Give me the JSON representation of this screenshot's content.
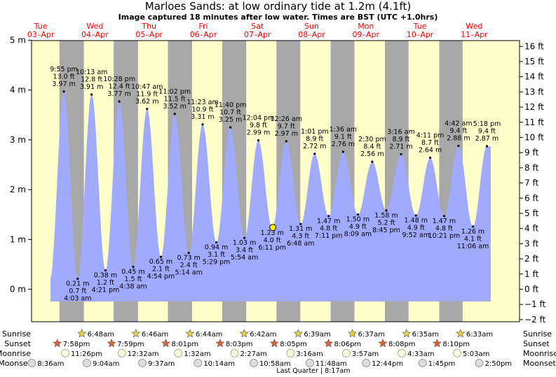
{
  "header": {
    "title": "Marloes Sands: at low  ordinary tide at 1.2m (4.1ft)",
    "subtitle": "Image captured 18 minutes after low water. Times are BST (UTC +1.0hrs)"
  },
  "chart_data": {
    "type": "area",
    "xunit": "hours since Tue 03-Apr 00:00 BST",
    "days": [
      {
        "dow": "Tue",
        "date": "03–Apr"
      },
      {
        "dow": "Wed",
        "date": "04–Apr"
      },
      {
        "dow": "Thu",
        "date": "05–Apr"
      },
      {
        "dow": "Fri",
        "date": "06–Apr"
      },
      {
        "dow": "Sat",
        "date": "07–Apr"
      },
      {
        "dow": "Sun",
        "date": "08–Apr"
      },
      {
        "dow": "Mon",
        "date": "09–Apr"
      },
      {
        "dow": "Tue",
        "date": "10–Apr"
      },
      {
        "dow": "Wed",
        "date": "11–Apr"
      }
    ],
    "ylim_m": [
      -0.65,
      5.0
    ],
    "y_ticks_m": [
      "5 m",
      "4 m",
      "3 m",
      "2 m",
      "1 m",
      "0 m"
    ],
    "y_ticks_ft": [
      "16 ft",
      "15 ft",
      "14 ft",
      "13 ft",
      "12 ft",
      "11 ft",
      "10 ft",
      "9 ft",
      "8 ft",
      "7 ft",
      "6 ft",
      "5 ft",
      "4 ft",
      "3 ft",
      "2 ft",
      "1 ft",
      "0 ft",
      "−1 ft",
      "−2 ft"
    ],
    "tides": [
      {
        "type": "high",
        "day": 0,
        "time": "9:55 pm",
        "ft": "13.0 ft",
        "m": "3.97 m",
        "h": 21.92,
        "v": 3.97
      },
      {
        "type": "low",
        "day": 1,
        "time": "4:03 am",
        "ft": "0.7 ft",
        "m": "0.21 m",
        "h": 28.05,
        "v": 0.21
      },
      {
        "type": "high",
        "day": 1,
        "time": "10:13 am",
        "ft": "12.8 ft",
        "m": "3.91 m",
        "h": 34.22,
        "v": 3.91
      },
      {
        "type": "low",
        "day": 1,
        "time": "4:21 pm",
        "ft": "1.2 ft",
        "m": "0.38 m",
        "h": 40.35,
        "v": 0.38
      },
      {
        "type": "high",
        "day": 1,
        "time": "10:28 pm",
        "ft": "12.4 ft",
        "m": "3.77 m",
        "h": 46.47,
        "v": 3.77
      },
      {
        "type": "low",
        "day": 2,
        "time": "4:38 am",
        "ft": "1.5 ft",
        "m": "0.45 m",
        "h": 52.63,
        "v": 0.45
      },
      {
        "type": "high",
        "day": 2,
        "time": "10:47 am",
        "ft": "11.9 ft",
        "m": "3.62 m",
        "h": 58.78,
        "v": 3.62
      },
      {
        "type": "low",
        "day": 2,
        "time": "4:54 pm",
        "ft": "2.1 ft",
        "m": "0.65 m",
        "h": 64.9,
        "v": 0.65
      },
      {
        "type": "high",
        "day": 2,
        "time": "11:02 pm",
        "ft": "11.5 ft",
        "m": "3.52 m",
        "h": 71.03,
        "v": 3.52
      },
      {
        "type": "low",
        "day": 3,
        "time": "5:14 am",
        "ft": "2.4 ft",
        "m": "0.73 m",
        "h": 77.23,
        "v": 0.73
      },
      {
        "type": "high",
        "day": 3,
        "time": "11:23 am",
        "ft": "10.9 ft",
        "m": "3.31 m",
        "h": 83.38,
        "v": 3.31
      },
      {
        "type": "low",
        "day": 3,
        "time": "5:29 pm",
        "ft": "3.1 ft",
        "m": "0.94 m",
        "h": 89.48,
        "v": 0.94
      },
      {
        "type": "high",
        "day": 3,
        "time": "11:40 pm",
        "ft": "10.7 ft",
        "m": "3.25 m",
        "h": 95.67,
        "v": 3.25
      },
      {
        "type": "low",
        "day": 4,
        "time": "5:54 am",
        "ft": "3.4 ft",
        "m": "1.03 m",
        "h": 101.9,
        "v": 1.03
      },
      {
        "type": "high",
        "day": 4,
        "time": "12:04 pm",
        "ft": "9.8 ft",
        "m": "2.99 m",
        "h": 108.07,
        "v": 2.99
      },
      {
        "type": "low",
        "day": 4,
        "time": "6:11 pm",
        "ft": "4.0 ft",
        "m": "1.23 m",
        "h": 114.18,
        "v": 1.23
      },
      {
        "type": "high",
        "day": 5,
        "time": "12:26 am",
        "ft": "9.7 ft",
        "m": "2.97 m",
        "h": 120.43,
        "v": 2.97
      },
      {
        "type": "low",
        "day": 5,
        "time": "6:48 am",
        "ft": "4.3 ft",
        "m": "1.31 m",
        "h": 126.8,
        "v": 1.31
      },
      {
        "type": "high",
        "day": 5,
        "time": "1:01 pm",
        "ft": "8.9 ft",
        "m": "2.72 m",
        "h": 133.02,
        "v": 2.72
      },
      {
        "type": "low",
        "day": 5,
        "time": "7:11 pm",
        "ft": "4.8 ft",
        "m": "1.47 m",
        "h": 139.18,
        "v": 1.47
      },
      {
        "type": "high",
        "day": 6,
        "time": "1:36 am",
        "ft": "9.1 ft",
        "m": "2.76 m",
        "h": 145.6,
        "v": 2.76
      },
      {
        "type": "low",
        "day": 6,
        "time": "8:09 am",
        "ft": "4.9 ft",
        "m": "1.50 m",
        "h": 152.15,
        "v": 1.5
      },
      {
        "type": "high",
        "day": 6,
        "time": "2:30 pm",
        "ft": "8.4 ft",
        "m": "2.56 m",
        "h": 158.5,
        "v": 2.56
      },
      {
        "type": "low",
        "day": 6,
        "time": "8:45 pm",
        "ft": "5.2 ft",
        "m": "1.58 m",
        "h": 164.75,
        "v": 1.58
      },
      {
        "type": "high",
        "day": 7,
        "time": "3:16 am",
        "ft": "8.9 ft",
        "m": "2.71 m",
        "h": 171.27,
        "v": 2.71
      },
      {
        "type": "low",
        "day": 7,
        "time": "9:52 am",
        "ft": "4.9 ft",
        "m": "1.48 m",
        "h": 177.87,
        "v": 1.48
      },
      {
        "type": "high",
        "day": 7,
        "time": "4:11 pm",
        "ft": "8.7 ft",
        "m": "2.64 m",
        "h": 184.18,
        "v": 2.64
      },
      {
        "type": "low",
        "day": 7,
        "time": "10:21 pm",
        "ft": "4.8 ft",
        "m": "1.47 m",
        "h": 190.35,
        "v": 1.47
      },
      {
        "type": "high",
        "day": 8,
        "time": "4:42 am",
        "ft": "9.4 ft",
        "m": "2.88 m",
        "h": 196.7,
        "v": 2.88
      },
      {
        "type": "low",
        "day": 8,
        "time": "11:06 am",
        "ft": "4.1 ft",
        "m": "1.26 m",
        "h": 203.1,
        "v": 1.26
      },
      {
        "type": "high",
        "day": 8,
        "time": "5:18 pm",
        "ft": "9.4 ft",
        "m": "2.87 m",
        "h": 209.3,
        "v": 2.87
      }
    ],
    "current": {
      "h": 114.48,
      "v": 1.24
    },
    "sunrise": [
      {
        "day": 1,
        "time": "6:48am",
        "h": 30.8
      },
      {
        "day": 2,
        "time": "6:46am",
        "h": 54.77
      },
      {
        "day": 3,
        "time": "6:44am",
        "h": 78.73
      },
      {
        "day": 4,
        "time": "6:42am",
        "h": 102.7
      },
      {
        "day": 5,
        "time": "6:39am",
        "h": 126.65
      },
      {
        "day": 6,
        "time": "6:37am",
        "h": 150.62
      },
      {
        "day": 7,
        "time": "6:35am",
        "h": 174.58
      },
      {
        "day": 8,
        "time": "6:33am",
        "h": 198.55
      }
    ],
    "sunset": [
      {
        "day": 0,
        "time": "7:58pm",
        "h": 19.97
      },
      {
        "day": 1,
        "time": "7:59pm",
        "h": 43.98
      },
      {
        "day": 2,
        "time": "8:01pm",
        "h": 68.02
      },
      {
        "day": 3,
        "time": "8:03pm",
        "h": 92.05
      },
      {
        "day": 4,
        "time": "8:05pm",
        "h": 116.08
      },
      {
        "day": 5,
        "time": "8:06pm",
        "h": 140.1
      },
      {
        "day": 6,
        "time": "8:08pm",
        "h": 164.13
      },
      {
        "day": 7,
        "time": "8:10pm",
        "h": 188.17
      }
    ],
    "moonrise": [
      {
        "day": 0,
        "time": "11:26pm",
        "h": 23.43
      },
      {
        "day": 1,
        "time": "12:32am",
        "h": 48.53
      },
      {
        "day": 2,
        "time": "1:32am",
        "h": 73.53
      },
      {
        "day": 3,
        "time": "2:27am",
        "h": 98.45
      },
      {
        "day": 4,
        "time": "3:16am",
        "h": 123.27
      },
      {
        "day": 5,
        "time": "3:57am",
        "h": 147.95
      },
      {
        "day": 6,
        "time": "4:33am",
        "h": 172.55
      },
      {
        "day": 7,
        "time": "5:03am",
        "h": 197.05
      }
    ],
    "moonset": [
      {
        "day": 0,
        "time": "8:36am",
        "h": 8.6
      },
      {
        "day": 1,
        "time": "9:04am",
        "h": 33.07
      },
      {
        "day": 2,
        "time": "9:37am",
        "h": 57.62
      },
      {
        "day": 3,
        "time": "10:14am",
        "h": 82.23
      },
      {
        "day": 4,
        "time": "10:58am",
        "h": 106.97
      },
      {
        "day": 5,
        "time": "11:48am",
        "h": 131.8
      },
      {
        "day": 6,
        "time": "12:44pm",
        "h": 156.73
      },
      {
        "day": 7,
        "time": "1:45pm",
        "h": 181.75
      },
      {
        "day": 8,
        "time": "2:50pm",
        "h": 206.83
      }
    ],
    "row_labels": {
      "sunrise": "Sunrise",
      "sunset": "Sunset",
      "moonrise": "Moonrise",
      "moonset": "Moonset"
    },
    "moon_phase": "Last Quarter | 8:17am",
    "colors": {
      "day": "#ffffcc",
      "night": "#a8a8a8",
      "water": "#a0aaff",
      "high_label": "#000000",
      "day_label": "#ff0000",
      "sun_star": "#e8d040",
      "sunset_star": "#e06030"
    }
  }
}
